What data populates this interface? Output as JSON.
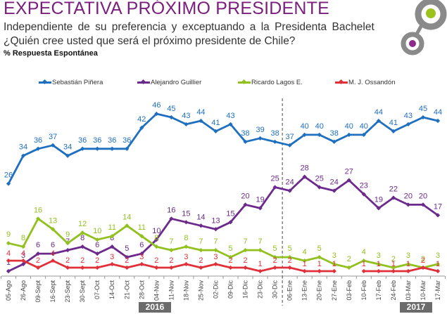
{
  "header": {
    "title": "EXPECTATIVA PRÓXIMO PRESIDENTE",
    "subtitle_line1": "Independiente de su preferencia y exceptuando a la Presidenta Bachelet",
    "subtitle_line2": "¿Quién cree usted que será el próximo presidente de Chile?",
    "note": "% Respuesta Espontánea"
  },
  "logo": {
    "icon": "linked-circles-logo",
    "colors": {
      "ring": "#8a8a8a",
      "dot1": "#9bc31c",
      "dot2": "#8e2a8e"
    }
  },
  "year_labels": [
    "2016",
    "2017"
  ],
  "chart_data": {
    "type": "line",
    "title": "EXPECTATIVA PRÓXIMO PRESIDENTE",
    "xlabel": "",
    "ylabel": "",
    "ylim": [
      0,
      50
    ],
    "grid": false,
    "legend_position": "top",
    "x": [
      "05-Ago",
      "26-Ago",
      "09-Sept",
      "16-Sept",
      "23-Sept",
      "30-Sept",
      "07-Oct",
      "14-Oct",
      "21-Oct",
      "28-Oct",
      "04-Nov",
      "11-Nov",
      "18-Nov",
      "25-Nov",
      "02-Dic",
      "09-Dic",
      "16-Dic",
      "23-Dic",
      "30-Dic",
      "06-Ene",
      "13-Ene",
      "20-Ene",
      "27-Ene",
      "03-Feb",
      "10-Feb",
      "17-Feb",
      "24-Feb",
      "03-Mar",
      "10-Mar",
      "17-Mar"
    ],
    "year_groups": [
      {
        "label": "2016",
        "from": "05-Ago",
        "to": "30-Dic"
      },
      {
        "label": "2017",
        "from": "06-Ene",
        "to": "17-Mar"
      }
    ],
    "divider_after": "30-Dic",
    "series": [
      {
        "name": "Sebastián Piñera",
        "color": "#1f6fc1",
        "values": [
          26,
          34,
          36,
          37,
          34,
          36,
          36,
          36,
          36,
          42,
          46,
          45,
          43,
          44,
          41,
          43,
          38,
          39,
          38,
          37,
          40,
          40,
          38,
          40,
          40,
          44,
          41,
          43,
          45,
          44
        ]
      },
      {
        "name": "Alejandro Guillier",
        "color": "#6c2a8c",
        "values": [
          1,
          3,
          6,
          6,
          7,
          8,
          6,
          8,
          5,
          6,
          10,
          16,
          15,
          14,
          13,
          15,
          20,
          19,
          25,
          24,
          28,
          25,
          24,
          27,
          23,
          19,
          22,
          20,
          20,
          17
        ]
      },
      {
        "name": "Ricardo Lagos E.",
        "color": "#92c01f",
        "values": [
          9,
          8,
          16,
          13,
          9,
          12,
          10,
          11,
          14,
          11,
          8,
          7,
          8,
          7,
          7,
          5,
          7,
          7,
          5,
          5,
          4,
          5,
          3,
          2,
          4,
          3,
          2,
          3,
          2,
          3
        ]
      },
      {
        "name": "M. J. Ossandón",
        "color": "#e0303a",
        "values": [
          4,
          4,
          2,
          4,
          2,
          2,
          2,
          3,
          2,
          3,
          2,
          2,
          3,
          2,
          3,
          2,
          2,
          1,
          2,
          2,
          1,
          1,
          1,
          null,
          1,
          1,
          1,
          1,
          2,
          1
        ]
      }
    ]
  }
}
